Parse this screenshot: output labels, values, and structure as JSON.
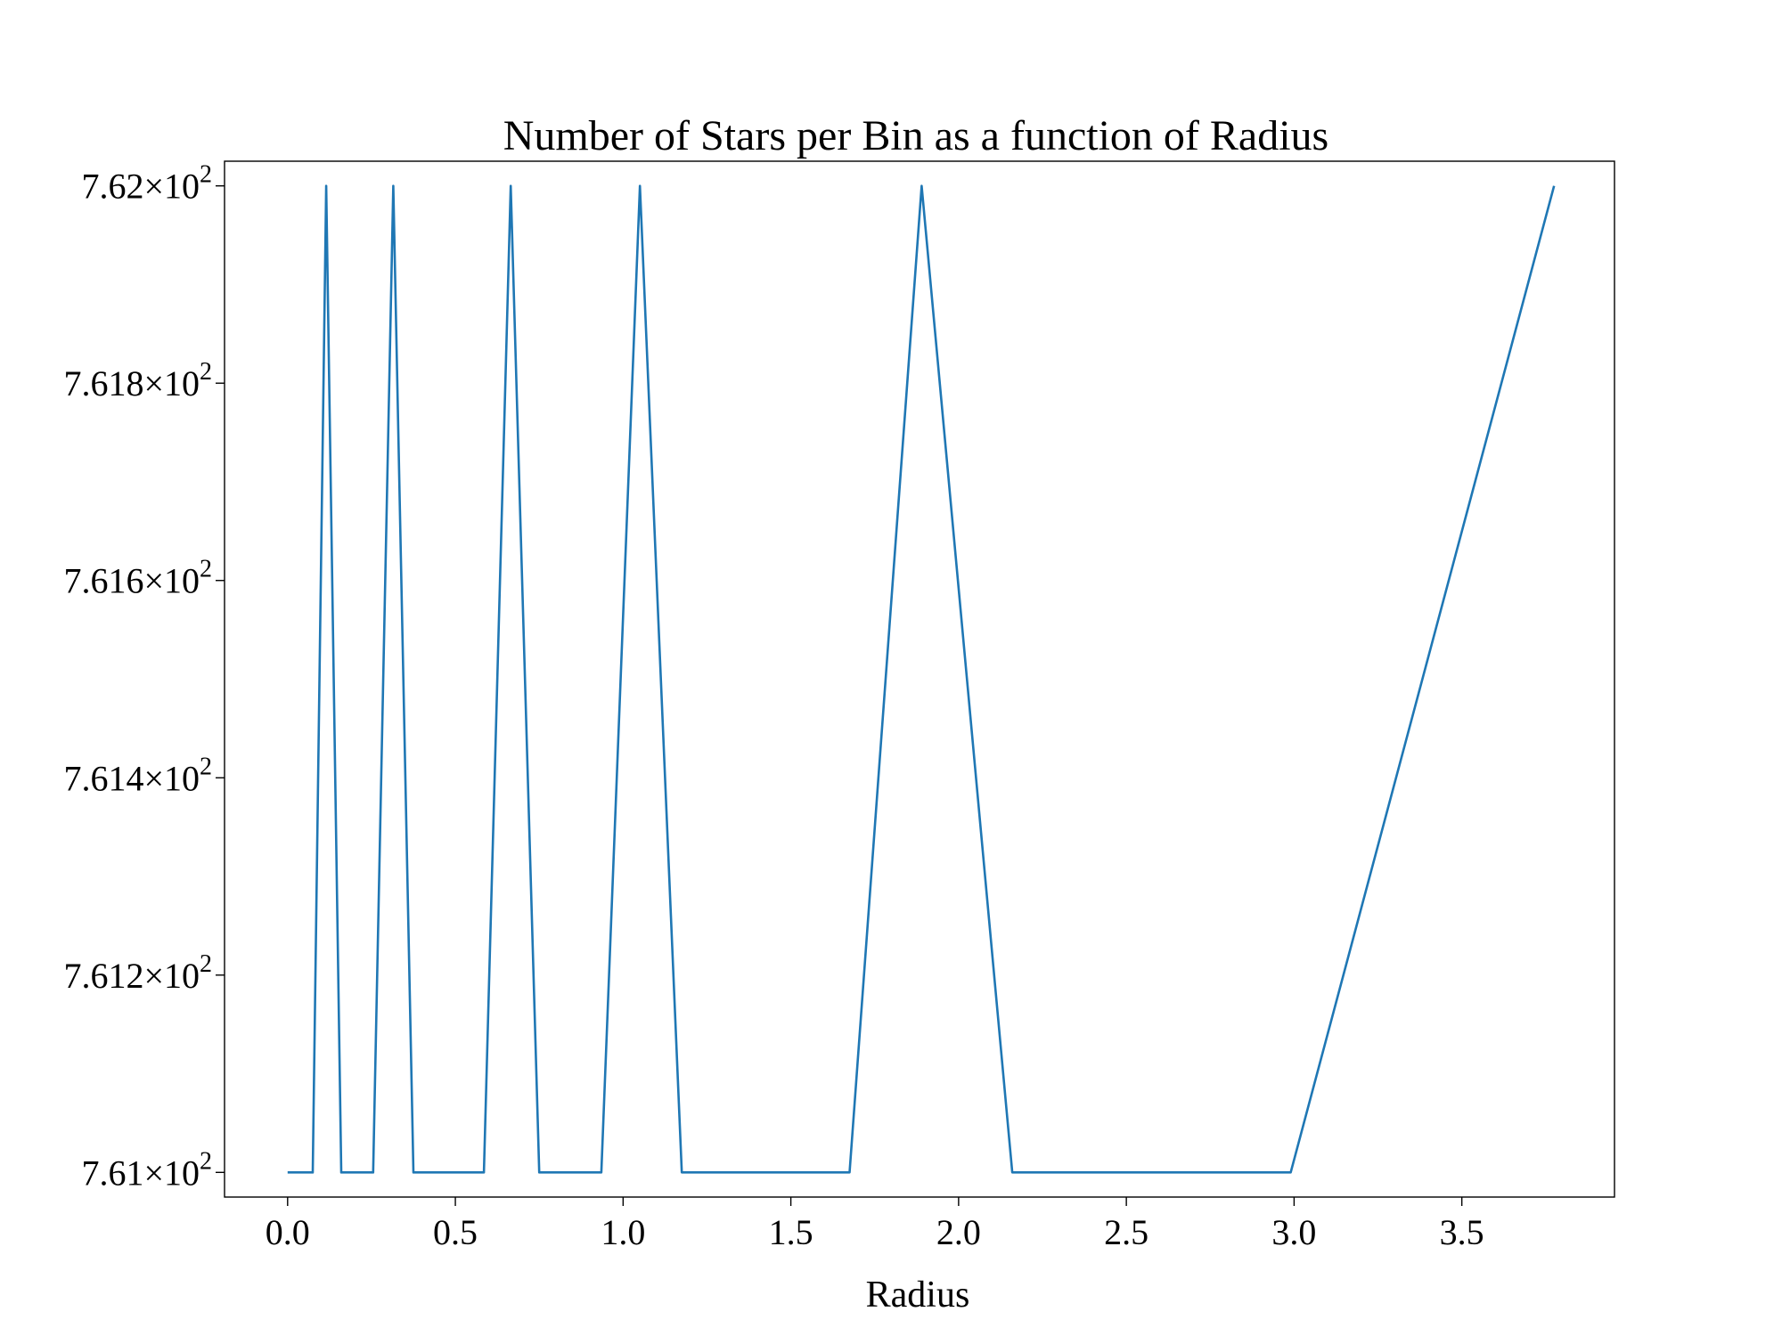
{
  "chart_data": {
    "type": "line",
    "title": "Number of Stars per Bin as a function of Radius",
    "xlabel": "Radius",
    "ylabel": "",
    "xlim": [
      -0.188,
      3.955
    ],
    "ylim": [
      760.975,
      762.025
    ],
    "x_ticks": [
      0.0,
      0.5,
      1.0,
      1.5,
      2.0,
      2.5,
      3.0,
      3.5
    ],
    "x_tick_labels": [
      "0.0",
      "0.5",
      "1.0",
      "1.5",
      "2.0",
      "2.5",
      "3.0",
      "3.5"
    ],
    "y_ticks": [
      {
        "value": 761.0,
        "mantissa": "7.61",
        "exponent": "2"
      },
      {
        "value": 761.2,
        "mantissa": "7.612",
        "exponent": "2"
      },
      {
        "value": 761.4,
        "mantissa": "7.614",
        "exponent": "2"
      },
      {
        "value": 761.6,
        "mantissa": "7.616",
        "exponent": "2"
      },
      {
        "value": 761.8,
        "mantissa": "7.618",
        "exponent": "2"
      },
      {
        "value": 762.0,
        "mantissa": "7.62",
        "exponent": "2"
      }
    ],
    "grid": false,
    "series": [
      {
        "color": "#1f77b4",
        "x": [
          0.0,
          0.075,
          0.115,
          0.16,
          0.255,
          0.315,
          0.375,
          0.585,
          0.665,
          0.75,
          0.935,
          1.05,
          1.175,
          1.675,
          1.89,
          2.16,
          2.99,
          3.775
        ],
        "y": [
          761,
          761,
          762,
          761,
          761,
          762,
          761,
          761,
          762,
          761,
          761,
          762,
          761,
          761,
          762,
          761,
          761,
          762
        ]
      }
    ]
  }
}
